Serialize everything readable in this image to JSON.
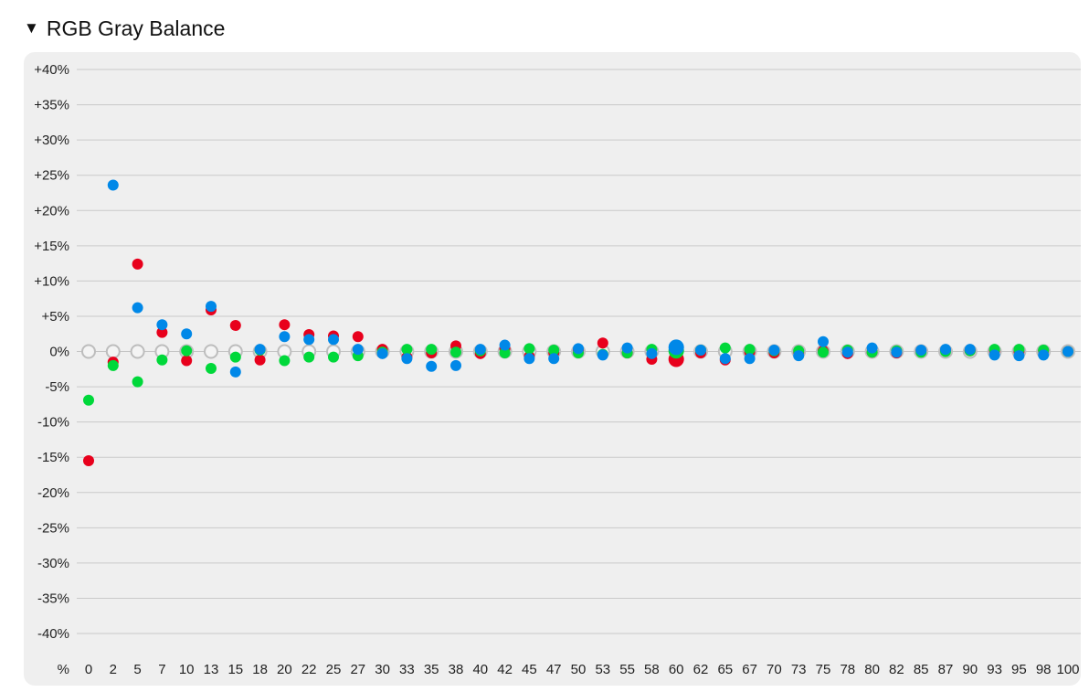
{
  "header": {
    "toggle_glyph": "▼",
    "title": "RGB Gray Balance"
  },
  "chart_data": {
    "type": "scatter",
    "title": "RGB Gray Balance",
    "x_unit_label": "%",
    "categories": [
      "0",
      "2",
      "5",
      "7",
      "10",
      "13",
      "15",
      "18",
      "20",
      "22",
      "25",
      "27",
      "30",
      "33",
      "35",
      "38",
      "40",
      "42",
      "45",
      "47",
      "50",
      "53",
      "55",
      "58",
      "60",
      "62",
      "65",
      "67",
      "70",
      "73",
      "75",
      "78",
      "80",
      "82",
      "85",
      "87",
      "90",
      "93",
      "95",
      "98",
      "100"
    ],
    "ylim": [
      -40,
      40
    ],
    "ytick_values": [
      40,
      35,
      30,
      25,
      20,
      15,
      10,
      5,
      0,
      -5,
      -10,
      -15,
      -20,
      -25,
      -30,
      -35,
      -40
    ],
    "ytick_labels": [
      "+40%",
      "+35%",
      "+30%",
      "+25%",
      "+20%",
      "+15%",
      "+10%",
      "+5%",
      "0%",
      "-5%",
      "-10%",
      "-15%",
      "-20%",
      "-25%",
      "-30%",
      "-35%",
      "-40%"
    ],
    "grid": true,
    "highlight_category": "60",
    "series": [
      {
        "color": "#bdbdbd",
        "marker": "hollow-circle",
        "values": [
          0,
          0,
          0,
          0,
          0,
          0,
          0,
          0,
          0,
          0,
          0,
          0,
          0,
          0,
          0,
          0,
          0,
          0,
          0,
          0,
          0,
          0,
          0,
          0,
          0,
          0,
          0,
          0,
          0,
          0,
          0,
          0,
          0,
          0,
          0,
          0,
          0,
          0,
          0,
          0,
          0
        ]
      },
      {
        "color": "#e8001c",
        "values": [
          -15.5,
          -1.5,
          12.4,
          2.7,
          -1.3,
          5.9,
          3.7,
          -1.2,
          3.8,
          2.4,
          2.2,
          2.1,
          0.3,
          -0.8,
          -0.2,
          0.8,
          -0.3,
          0.4,
          -0.7,
          -0.2,
          0.2,
          1.2,
          -0.2,
          -1.1,
          -1.1,
          -0.2,
          -1.2,
          -0.1,
          -0.2,
          -0.1,
          0.1,
          -0.3,
          -0.1,
          -0.2,
          0.1,
          0.2,
          0.1,
          0.1,
          0.0,
          0.1,
          0.0
        ]
      },
      {
        "color": "#00d83a",
        "values": [
          -6.9,
          -2.0,
          -4.3,
          -1.2,
          0.1,
          -2.4,
          -0.8,
          0.2,
          -1.3,
          -0.8,
          -0.8,
          -0.6,
          -0.1,
          0.3,
          0.3,
          -0.1,
          0.1,
          -0.2,
          0.4,
          0.2,
          -0.2,
          -0.4,
          -0.2,
          0.3,
          0.1,
          0.2,
          0.5,
          0.3,
          0.1,
          0.1,
          -0.1,
          0.2,
          -0.1,
          0.1,
          -0.1,
          0.0,
          0.1,
          0.3,
          0.3,
          0.2,
          0.0
        ]
      },
      {
        "color": "#0088e8",
        "values": [
          null,
          23.6,
          6.2,
          3.8,
          2.5,
          6.4,
          -2.9,
          0.3,
          2.1,
          1.7,
          1.7,
          0.3,
          -0.3,
          -1.0,
          -2.1,
          -2.0,
          0.3,
          0.9,
          -1.0,
          -1.0,
          0.4,
          -0.5,
          0.5,
          -0.3,
          0.6,
          0.2,
          -1.0,
          -1.0,
          0.2,
          -0.6,
          1.4,
          -0.1,
          0.5,
          -0.1,
          0.2,
          0.3,
          0.3,
          -0.5,
          -0.6,
          -0.5,
          0.0
        ]
      }
    ]
  }
}
